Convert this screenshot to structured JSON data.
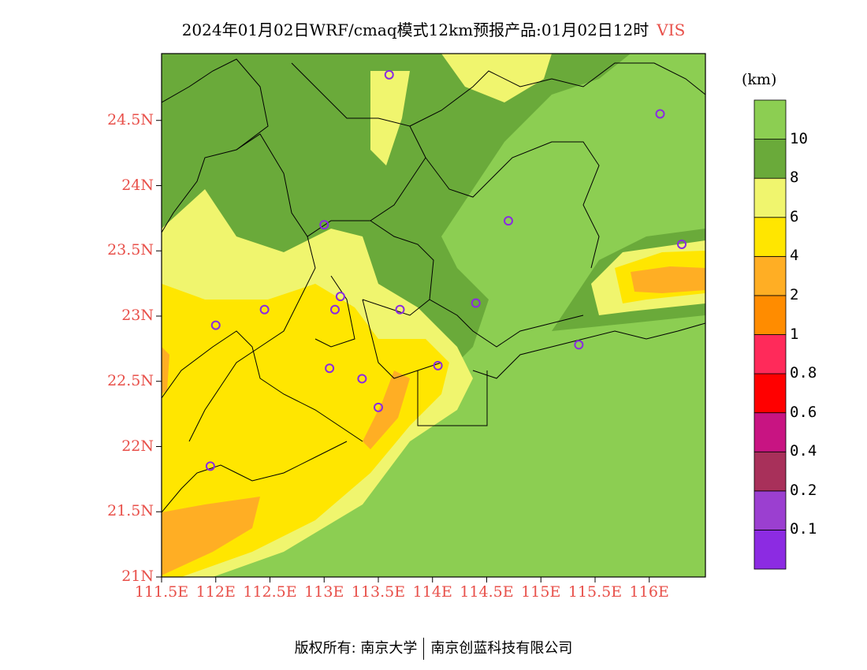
{
  "title": {
    "text": "2024年01月02日WRF/cmaq模式12km预报产品:01月02日12时",
    "variable": "VIS"
  },
  "colorbar": {
    "unit": "(km)",
    "bins": [
      {
        "color": "#8c2be2",
        "label": ""
      },
      {
        "color": "#9b3fd0",
        "label": "0.1"
      },
      {
        "color": "#a8305a",
        "label": "0.2"
      },
      {
        "color": "#c81482",
        "label": "0.4"
      },
      {
        "color": "#ff0000",
        "label": "0.6"
      },
      {
        "color": "#ff2a5a",
        "label": "0.8"
      },
      {
        "color": "#ff8c00",
        "label": "1"
      },
      {
        "color": "#ffae24",
        "label": "2"
      },
      {
        "color": "#ffe600",
        "label": "4"
      },
      {
        "color": "#f0f56e",
        "label": "6"
      },
      {
        "color": "#6aaa3a",
        "label": "8"
      },
      {
        "color": "#8cce52",
        "label": "10"
      }
    ]
  },
  "axes": {
    "lat_labels": [
      "24.5N",
      "24N",
      "23.5N",
      "23N",
      "22.5N",
      "22N",
      "21.5N",
      "21N"
    ],
    "lon_labels": [
      "111.5E",
      "112E",
      "112.5E",
      "113E",
      "113.5E",
      "114E",
      "114.5E",
      "115E",
      "115.5E",
      "116E"
    ]
  },
  "stations": [
    {
      "lon": 113.6,
      "lat": 24.85
    },
    {
      "lon": 116.1,
      "lat": 24.55
    },
    {
      "lon": 114.7,
      "lat": 23.73
    },
    {
      "lon": 113.0,
      "lat": 23.7
    },
    {
      "lon": 116.3,
      "lat": 23.55
    },
    {
      "lon": 113.15,
      "lat": 23.15
    },
    {
      "lon": 112.45,
      "lat": 23.05
    },
    {
      "lon": 113.1,
      "lat": 23.05
    },
    {
      "lon": 113.7,
      "lat": 23.05
    },
    {
      "lon": 114.4,
      "lat": 23.1
    },
    {
      "lon": 112.0,
      "lat": 22.93
    },
    {
      "lon": 115.35,
      "lat": 22.78
    },
    {
      "lon": 113.05,
      "lat": 22.6
    },
    {
      "lon": 114.05,
      "lat": 22.62
    },
    {
      "lon": 113.35,
      "lat": 22.52
    },
    {
      "lon": 113.5,
      "lat": 22.3
    },
    {
      "lon": 111.95,
      "lat": 21.85
    }
  ],
  "footer": {
    "copyright": "版权所有: 南京大学",
    "company": "南京创蓝科技有限公司"
  }
}
